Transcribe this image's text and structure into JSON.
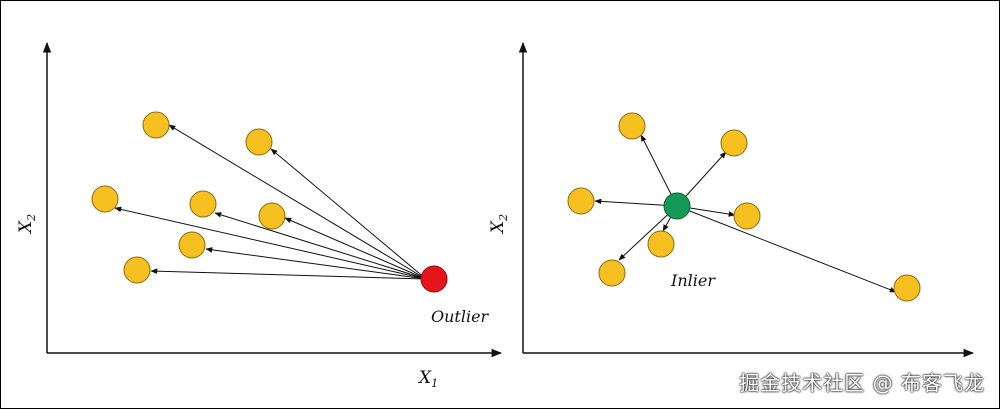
{
  "colors": {
    "point_fill": "#F5C020",
    "point_stroke": "#8A6A10",
    "outlier": "#E8141C",
    "inlier": "#159A55",
    "arrow": "#111111"
  },
  "left_panel": {
    "x_label": "X",
    "x_sub": "1",
    "y_label": "X",
    "y_sub": "2",
    "focus_label": "Outlier",
    "focus_kind": "outlier"
  },
  "right_panel": {
    "y_label": "X",
    "y_sub": "2",
    "focus_label": "Inlier",
    "focus_kind": "inlier"
  },
  "watermark": "掘金技术社区 @ 布客飞龙"
}
